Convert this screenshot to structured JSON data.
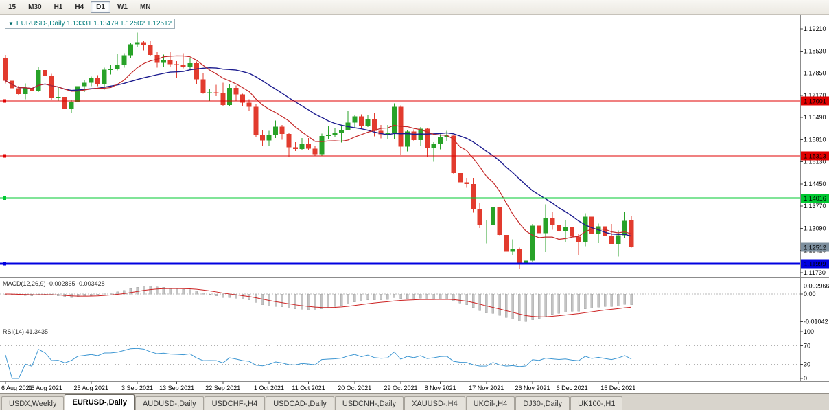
{
  "toolbar": {
    "timeframes": [
      {
        "label": "15",
        "active": false
      },
      {
        "label": "M30",
        "active": false
      },
      {
        "label": "H1",
        "active": false
      },
      {
        "label": "H4",
        "active": false
      },
      {
        "label": "D1",
        "active": true
      },
      {
        "label": "W1",
        "active": false
      },
      {
        "label": "MN",
        "active": false
      }
    ]
  },
  "chart": {
    "dropdown_icon": "▼",
    "title_line": "EURUSD-,Daily 1.13331 1.13479 1.12502 1.12512"
  },
  "indicators": {
    "macd": {
      "label": "MACD(12,26,9) -0.002865 -0.003428",
      "main_value": -0.002865,
      "signal_value": -0.003428,
      "axis_labels": [
        {
          "text": "0.002966",
          "value": 0.002966
        },
        {
          "text": "0.00",
          "value": 0
        },
        {
          "text": "-0.01042",
          "value": -0.01042
        }
      ]
    },
    "rsi": {
      "label": "RSI(14) 41.3435",
      "value": 41.3435,
      "levels": [
        70,
        30
      ],
      "axis_labels": [
        {
          "text": "100",
          "value": 100
        },
        {
          "text": "70",
          "value": 70
        },
        {
          "text": "30",
          "value": 30
        },
        {
          "text": "0",
          "value": 0
        }
      ]
    }
  },
  "levels": [
    {
      "text": "1.17001",
      "price": 1.17001,
      "color": "#e00000",
      "width": 1
    },
    {
      "text": "1.15313",
      "price": 1.15313,
      "color": "#e00000",
      "width": 1
    },
    {
      "text": "1.14016",
      "price": 1.14016,
      "color": "#00c832",
      "width": 2
    },
    {
      "text": "1.11999",
      "price": 1.11999,
      "color": "#0000e0",
      "width": 3
    }
  ],
  "current_price": {
    "text": "1.12512",
    "value": 1.12512,
    "tag_color": "#7d8f9e"
  },
  "chart_data": {
    "type": "candlestick",
    "symbol": "EURUSD-",
    "timeframe": "Daily",
    "current_bar": {
      "open": 1.13331,
      "high": 1.13479,
      "low": 1.12502,
      "close": 1.12512
    },
    "colors": {
      "bull": "#28a228",
      "bear": "#e23b2e",
      "ma_fast": "#c42828",
      "ma_slow": "#1c1c8f",
      "macd_histogram": "#c4c4c4",
      "macd_signal": "#cc2222",
      "rsi": "#3c96d2"
    },
    "overlays": [
      {
        "name": "ma-fast",
        "type": "sma",
        "period": 10
      },
      {
        "name": "ma-slow",
        "type": "sma",
        "period": 21
      }
    ],
    "price_axis": {
      "labels": [
        "1.19210",
        "1.18530",
        "1.17850",
        "1.17170",
        "1.16490",
        "1.15810",
        "1.15130",
        "1.14450",
        "1.13770",
        "1.13090",
        "1.12410",
        "1.11730"
      ]
    },
    "date_axis": {
      "ticks": [
        {
          "index": 0,
          "label": "6 Aug 2021"
        },
        {
          "index": 6,
          "label": "16 Aug 2021"
        },
        {
          "index": 13,
          "label": "25 Aug 2021"
        },
        {
          "index": 20,
          "label": "3 Sep 2021"
        },
        {
          "index": 26,
          "label": "13 Sep 2021"
        },
        {
          "index": 33,
          "label": "22 Sep 2021"
        },
        {
          "index": 40,
          "label": "1 Oct 2021"
        },
        {
          "index": 46,
          "label": "11 Oct 2021"
        },
        {
          "index": 53,
          "label": "20 Oct 2021"
        },
        {
          "index": 60,
          "label": "29 Oct 2021"
        },
        {
          "index": 66,
          "label": "8 Nov 2021"
        },
        {
          "index": 73,
          "label": "17 Nov 2021"
        },
        {
          "index": 80,
          "label": "26 Nov 2021"
        },
        {
          "index": 86,
          "label": "6 Dec 2021"
        },
        {
          "index": 93,
          "label": "15 Dec 2021"
        }
      ]
    },
    "candles": [
      [
        1.1832,
        1.1841,
        1.1753,
        1.1762
      ],
      [
        1.1762,
        1.1769,
        1.1735,
        1.1739
      ],
      [
        1.1739,
        1.1746,
        1.1717,
        1.1721
      ],
      [
        1.1721,
        1.1753,
        1.1705,
        1.1739
      ],
      [
        1.1739,
        1.1742,
        1.1709,
        1.1729
      ],
      [
        1.1729,
        1.1805,
        1.1727,
        1.1795
      ],
      [
        1.1795,
        1.1797,
        1.1765,
        1.1777
      ],
      [
        1.1777,
        1.1783,
        1.1702,
        1.171
      ],
      [
        1.171,
        1.1742,
        1.17,
        1.1712
      ],
      [
        1.1712,
        1.1715,
        1.1665,
        1.1675
      ],
      [
        1.1675,
        1.1704,
        1.1664,
        1.1697
      ],
      [
        1.1697,
        1.175,
        1.1693,
        1.1745
      ],
      [
        1.1745,
        1.1765,
        1.1727,
        1.1756
      ],
      [
        1.1756,
        1.1775,
        1.1745,
        1.177
      ],
      [
        1.177,
        1.1779,
        1.1745,
        1.1751
      ],
      [
        1.1751,
        1.1802,
        1.1735,
        1.1796
      ],
      [
        1.1796,
        1.181,
        1.1781,
        1.1797
      ],
      [
        1.1797,
        1.1845,
        1.1794,
        1.1809
      ],
      [
        1.1809,
        1.1846,
        1.1802,
        1.184
      ],
      [
        1.184,
        1.1877,
        1.1833,
        1.1874
      ],
      [
        1.1874,
        1.1909,
        1.1865,
        1.188
      ],
      [
        1.188,
        1.1885,
        1.1855,
        1.1872
      ],
      [
        1.1872,
        1.1885,
        1.1838,
        1.1841
      ],
      [
        1.1841,
        1.1851,
        1.1802,
        1.1817
      ],
      [
        1.1817,
        1.1842,
        1.1805,
        1.1825
      ],
      [
        1.1825,
        1.1851,
        1.1805,
        1.1813
      ],
      [
        1.1813,
        1.1822,
        1.177,
        1.181
      ],
      [
        1.181,
        1.1846,
        1.18,
        1.1805
      ],
      [
        1.1805,
        1.1832,
        1.1795,
        1.1816
      ],
      [
        1.1816,
        1.1821,
        1.1751,
        1.1766
      ],
      [
        1.1766,
        1.1785,
        1.1722,
        1.1725
      ],
      [
        1.1725,
        1.1738,
        1.17,
        1.1726
      ],
      [
        1.1726,
        1.1749,
        1.1715,
        1.1725
      ],
      [
        1.1725,
        1.1756,
        1.1684,
        1.1687
      ],
      [
        1.1687,
        1.1751,
        1.1684,
        1.174
      ],
      [
        1.174,
        1.1747,
        1.1701,
        1.172
      ],
      [
        1.172,
        1.1722,
        1.1685,
        1.1695
      ],
      [
        1.1695,
        1.1705,
        1.1668,
        1.1682
      ],
      [
        1.1682,
        1.169,
        1.159,
        1.1597
      ],
      [
        1.1597,
        1.1611,
        1.1563,
        1.1579
      ],
      [
        1.1579,
        1.1608,
        1.1563,
        1.1595
      ],
      [
        1.1595,
        1.164,
        1.1586,
        1.1621
      ],
      [
        1.1621,
        1.1626,
        1.1581,
        1.1599
      ],
      [
        1.1599,
        1.1601,
        1.1529,
        1.1558
      ],
      [
        1.1558,
        1.1573,
        1.1546,
        1.1552
      ],
      [
        1.1552,
        1.1586,
        1.1549,
        1.1567
      ],
      [
        1.1567,
        1.1586,
        1.1549,
        1.1553
      ],
      [
        1.1553,
        1.1562,
        1.1531,
        1.1536
      ],
      [
        1.1536,
        1.16,
        1.153,
        1.1592
      ],
      [
        1.1592,
        1.1624,
        1.1583,
        1.1597
      ],
      [
        1.1597,
        1.1618,
        1.1588,
        1.1601
      ],
      [
        1.1601,
        1.1622,
        1.1572,
        1.1609
      ],
      [
        1.1609,
        1.1669,
        1.1609,
        1.1633
      ],
      [
        1.1633,
        1.1658,
        1.1617,
        1.1652
      ],
      [
        1.1652,
        1.1659,
        1.1617,
        1.1623
      ],
      [
        1.1623,
        1.1656,
        1.162,
        1.1643
      ],
      [
        1.1643,
        1.1663,
        1.1591,
        1.1608
      ],
      [
        1.1608,
        1.1626,
        1.1585,
        1.1598
      ],
      [
        1.1598,
        1.1626,
        1.1583,
        1.1603
      ],
      [
        1.1603,
        1.1692,
        1.1582,
        1.1682
      ],
      [
        1.1682,
        1.1686,
        1.1535,
        1.156
      ],
      [
        1.156,
        1.1609,
        1.1545,
        1.1606
      ],
      [
        1.1606,
        1.1612,
        1.1575,
        1.158
      ],
      [
        1.158,
        1.162,
        1.1562,
        1.1614
      ],
      [
        1.1614,
        1.1617,
        1.1527,
        1.1554
      ],
      [
        1.1554,
        1.1573,
        1.1513,
        1.1567
      ],
      [
        1.1567,
        1.1598,
        1.1551,
        1.1588
      ],
      [
        1.1588,
        1.1608,
        1.1575,
        1.1593
      ],
      [
        1.1593,
        1.1595,
        1.1475,
        1.1478
      ],
      [
        1.1478,
        1.1488,
        1.1443,
        1.145
      ],
      [
        1.145,
        1.1464,
        1.1433,
        1.1445
      ],
      [
        1.1445,
        1.1464,
        1.1357,
        1.1369
      ],
      [
        1.1369,
        1.1386,
        1.131,
        1.1319
      ],
      [
        1.1319,
        1.1333,
        1.1263,
        1.132
      ],
      [
        1.132,
        1.1374,
        1.1314,
        1.1373
      ],
      [
        1.1373,
        1.1374,
        1.1288,
        1.1289
      ],
      [
        1.1289,
        1.1305,
        1.123,
        1.1237
      ],
      [
        1.1237,
        1.1275,
        1.1226,
        1.1245
      ],
      [
        1.1245,
        1.125,
        1.1186,
        1.12
      ],
      [
        1.12,
        1.1229,
        1.1196,
        1.121
      ],
      [
        1.121,
        1.1323,
        1.1205,
        1.1317
      ],
      [
        1.1317,
        1.1336,
        1.1258,
        1.1294
      ],
      [
        1.1294,
        1.1383,
        1.1236,
        1.1339
      ],
      [
        1.1339,
        1.136,
        1.1305,
        1.1319
      ],
      [
        1.1319,
        1.1348,
        1.1294,
        1.1302
      ],
      [
        1.1302,
        1.1334,
        1.1266,
        1.1312
      ],
      [
        1.1312,
        1.132,
        1.1267,
        1.1284
      ],
      [
        1.1284,
        1.1291,
        1.1228,
        1.1267
      ],
      [
        1.1267,
        1.1355,
        1.1254,
        1.1345
      ],
      [
        1.1345,
        1.1348,
        1.128,
        1.1293
      ],
      [
        1.1293,
        1.1324,
        1.1264,
        1.1315
      ],
      [
        1.1315,
        1.1319,
        1.126,
        1.1286
      ],
      [
        1.1286,
        1.1323,
        1.1261,
        1.126
      ],
      [
        1.126,
        1.1303,
        1.1222,
        1.1288
      ],
      [
        1.1288,
        1.136,
        1.128,
        1.1332
      ],
      [
        1.13331,
        1.13479,
        1.12502,
        1.12512
      ]
    ]
  },
  "tabs": [
    {
      "label": "USDX,Weekly",
      "active": false
    },
    {
      "label": "EURUSD-,Daily",
      "active": true
    },
    {
      "label": "AUDUSD-,Daily",
      "active": false
    },
    {
      "label": "USDCHF-,H4",
      "active": false
    },
    {
      "label": "USDCAD-,Daily",
      "active": false
    },
    {
      "label": "USDCNH-,Daily",
      "active": false
    },
    {
      "label": "XAUUSD-,H4",
      "active": false
    },
    {
      "label": "UKOil-,H4",
      "active": false
    },
    {
      "label": "DJ30-,Daily",
      "active": false
    },
    {
      "label": "UK100-,H1",
      "active": false
    }
  ]
}
